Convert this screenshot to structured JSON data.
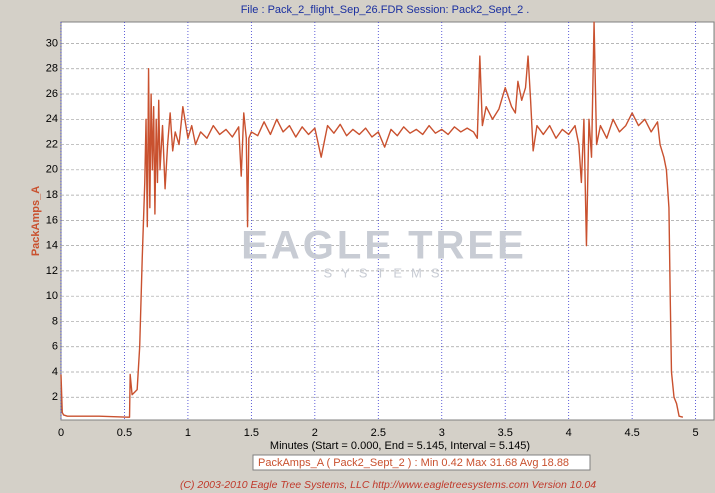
{
  "chart_data": {
    "type": "line",
    "title": "File : Pack_2_flight_Sep_26.FDR   Session: Pack2_Sept_2 .",
    "y_label": "PackAmps_A",
    "x_label": "Minutes (Start = 0.000,  End = 5.145, Interval =  5.145)",
    "watermark_title": "EAGLE TREE",
    "watermark_subtitle": "SYSTEMS",
    "stats": "Min 0.42   Max 31.68   Avg 18.88",
    "footer": "(C) 2003-2010 Eagle Tree Systems, LLC     http://www.eagletreesystems.com     Version 10.04",
    "xlim": [
      0,
      5.145
    ],
    "ylim": [
      0.2,
      31.7
    ],
    "xticks": [
      0,
      0.5,
      1,
      1.5,
      2,
      2.5,
      3,
      3.5,
      4,
      4.5,
      5
    ],
    "yticks": [
      2,
      4,
      6,
      8,
      10,
      12,
      14,
      16,
      18,
      20,
      22,
      24,
      26,
      28,
      30
    ],
    "grid": true,
    "x": [
      0,
      0.01,
      0.02,
      0.05,
      0.3,
      0.54,
      0.545,
      0.56,
      0.58,
      0.6,
      0.62,
      0.64,
      0.66,
      0.67,
      0.68,
      0.69,
      0.7,
      0.71,
      0.72,
      0.73,
      0.74,
      0.75,
      0.76,
      0.77,
      0.78,
      0.8,
      0.82,
      0.84,
      0.86,
      0.88,
      0.9,
      0.93,
      0.96,
      1.0,
      1.03,
      1.06,
      1.1,
      1.15,
      1.2,
      1.25,
      1.3,
      1.35,
      1.4,
      1.42,
      1.44,
      1.46,
      1.47,
      1.48,
      1.5,
      1.55,
      1.6,
      1.65,
      1.7,
      1.75,
      1.8,
      1.85,
      1.9,
      1.95,
      2.0,
      2.05,
      2.1,
      2.15,
      2.2,
      2.25,
      2.3,
      2.35,
      2.4,
      2.45,
      2.5,
      2.55,
      2.6,
      2.65,
      2.7,
      2.75,
      2.8,
      2.85,
      2.9,
      2.95,
      3.0,
      3.05,
      3.1,
      3.15,
      3.2,
      3.25,
      3.28,
      3.3,
      3.32,
      3.35,
      3.4,
      3.45,
      3.5,
      3.55,
      3.58,
      3.6,
      3.63,
      3.66,
      3.68,
      3.7,
      3.72,
      3.75,
      3.8,
      3.85,
      3.9,
      3.95,
      4.0,
      4.05,
      4.08,
      4.1,
      4.12,
      4.14,
      4.16,
      4.18,
      4.2,
      4.22,
      4.25,
      4.3,
      4.35,
      4.4,
      4.45,
      4.5,
      4.55,
      4.6,
      4.65,
      4.7,
      4.72,
      4.75,
      4.77,
      4.79,
      4.8,
      4.81,
      4.82,
      4.83,
      4.85,
      4.87,
      4.9
    ],
    "series": [
      {
        "name": "PackAmps_A ( Pack2_Sept_2 ) :",
        "color": "#c9512f",
        "values": [
          3.8,
          0.8,
          0.6,
          0.5,
          0.5,
          0.42,
          3.8,
          2.2,
          2.4,
          2.6,
          6,
          13,
          19,
          24,
          15.5,
          28,
          17,
          26,
          20,
          25,
          16.5,
          24,
          19,
          25.5,
          20,
          23.5,
          18.5,
          22,
          24.5,
          21.5,
          23,
          22,
          25,
          22.5,
          23.5,
          22,
          23,
          22.5,
          23.5,
          22.8,
          23.2,
          22.6,
          23.4,
          19.5,
          24.5,
          22.5,
          15.5,
          22.5,
          23,
          22.7,
          23.8,
          22.8,
          24,
          23,
          23.5,
          22.6,
          23.4,
          22.8,
          23.3,
          21,
          23.5,
          22.9,
          23.6,
          22.7,
          23.2,
          22.8,
          23.3,
          22.6,
          23,
          21.8,
          23.2,
          22.7,
          23.4,
          22.9,
          23.2,
          22.8,
          23.5,
          22.9,
          23.2,
          22.8,
          23.4,
          23,
          23.3,
          23,
          22.5,
          29,
          23.5,
          25,
          24,
          24.8,
          26.5,
          25,
          24.5,
          27,
          25.5,
          26.5,
          29,
          25.5,
          21.5,
          23.5,
          22.8,
          23.5,
          22.5,
          23.2,
          22.8,
          23.5,
          22,
          19,
          24,
          14,
          24,
          21,
          31.68,
          22,
          23.5,
          22.5,
          24,
          23,
          23.5,
          24.5,
          23.5,
          24,
          23,
          23.8,
          22,
          21,
          20,
          17,
          10,
          4,
          3,
          2,
          1.5,
          0.5,
          0.42
        ]
      }
    ]
  }
}
